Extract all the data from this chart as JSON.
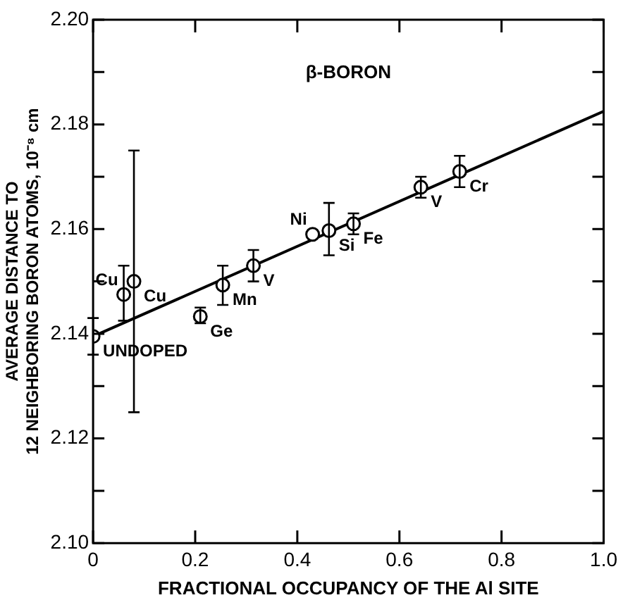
{
  "chart_data": {
    "type": "scatter",
    "title": "β-BORON",
    "xlabel": "FRACTIONAL OCCUPANCY OF THE Al SITE",
    "ylabel": "AVERAGE DISTANCE TO\n12 NEIGHBORING BORON ATOMS, 10⁻⁸ cm",
    "xlim": [
      0,
      1
    ],
    "xticks": [
      0,
      0.2,
      0.4,
      0.6,
      0.8,
      {
        "value": 1,
        "label": "1.0"
      }
    ],
    "ylim": [
      2.1,
      2.2
    ],
    "yticks": [
      {
        "value": 2.1,
        "label": "2.10"
      },
      {
        "value": 2.11,
        "label": null
      },
      2.12,
      {
        "value": 2.13,
        "label": null
      },
      2.14,
      {
        "value": 2.15,
        "label": null
      },
      2.16,
      {
        "value": 2.17,
        "label": null
      },
      2.18,
      {
        "value": 2.19,
        "label": null
      },
      {
        "value": 2.2,
        "label": "2.20"
      }
    ],
    "grid": false,
    "legend": false,
    "series": [
      {
        "color": "#000000",
        "marker": "circle",
        "x": [
          0,
          0.06,
          0.08,
          0.21,
          0.254,
          0.314,
          0.43,
          0.462,
          0.51,
          0.642,
          0.718
        ],
        "values": [
          2.1395,
          2.1475,
          2.15,
          2.1433,
          2.1493,
          2.153,
          2.159,
          2.1597,
          2.161,
          2.168,
          2.171
        ],
        "errors": [
          [
            2.136,
            2.143
          ],
          [
            2.1425,
            2.153
          ],
          [
            2.125,
            2.175
          ],
          [
            2.142,
            2.145
          ],
          [
            2.1455,
            2.153
          ],
          [
            2.15,
            2.156
          ],
          null,
          [
            2.155,
            2.165
          ],
          [
            2.159,
            2.163
          ],
          [
            2.166,
            2.17
          ],
          [
            2.168,
            2.174
          ]
        ]
      },
      {
        "type": "line",
        "color": "#000000",
        "x": [
          0,
          1
        ],
        "values": [
          2.1395,
          2.1825
        ]
      }
    ],
    "annotations": [
      {
        "text": "UNDOPED",
        "x": 0,
        "y": 2.1395
      },
      {
        "text": "Cu",
        "x": 0.06,
        "y": 2.1475
      },
      {
        "text": "Cu",
        "x": 0.08,
        "y": 2.15
      },
      {
        "text": "Ge",
        "x": 0.21,
        "y": 2.1433
      },
      {
        "text": "Mn",
        "x": 0.254,
        "y": 2.1493
      },
      {
        "text": "V",
        "x": 0.314,
        "y": 2.153
      },
      {
        "text": "Ni",
        "x": 0.43,
        "y": 2.159
      },
      {
        "text": "Si",
        "x": 0.462,
        "y": 2.1597
      },
      {
        "text": "Fe",
        "x": 0.51,
        "y": 2.161
      },
      {
        "text": "V",
        "x": 0.642,
        "y": 2.168
      },
      {
        "text": "Cr",
        "x": 0.718,
        "y": 2.171
      }
    ]
  }
}
